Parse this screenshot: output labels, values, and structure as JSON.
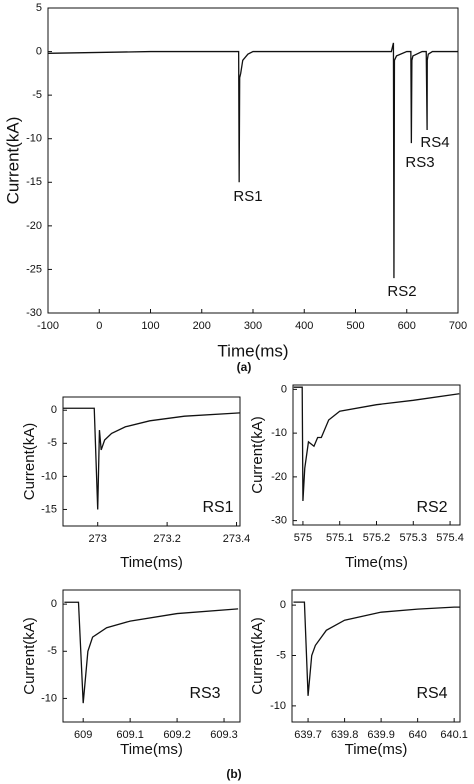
{
  "panel_labels": [
    "(a)",
    "(b)"
  ],
  "chart_data": [
    {
      "type": "line",
      "xlabel": "Time(ms)",
      "ylabel": "Current(kA)",
      "xlim": [
        -100,
        700
      ],
      "xticks": [
        -100,
        0,
        100,
        200,
        300,
        400,
        500,
        600,
        700
      ],
      "ylim": [
        -30,
        5
      ],
      "yticks": [
        5,
        0,
        -5,
        -10,
        -15,
        -20,
        -25,
        -30
      ],
      "color": "#111111",
      "x": [
        -100,
        0,
        100,
        200,
        270,
        272,
        273,
        274,
        276,
        280,
        290,
        300,
        400,
        500,
        570,
        574,
        575,
        576,
        580,
        600,
        608,
        609,
        610,
        612,
        630,
        638,
        639.7,
        640,
        642,
        650,
        700
      ],
      "values": [
        -0.2,
        -0.1,
        0,
        0,
        0,
        0,
        -15,
        -3,
        -2.5,
        -1,
        -0.3,
        0,
        0,
        0,
        0,
        1,
        -26,
        -1,
        -0.5,
        0,
        0,
        -10.5,
        -1,
        -0.5,
        0,
        0,
        -9,
        -1,
        -0.3,
        0,
        0
      ],
      "annotations": [
        "RS1",
        "RS2",
        "RS3",
        "RS4"
      ]
    },
    {
      "type": "line",
      "label": "RS1",
      "xlabel": "Time(ms)",
      "ylabel": "Current(kA)",
      "xlim": [
        272.9,
        273.41
      ],
      "xticks": [
        273,
        273.2,
        273.4
      ],
      "ylim": [
        -17.5,
        2
      ],
      "yticks": [
        0,
        -5,
        -10,
        -15
      ],
      "color": "#111111",
      "x": [
        272.9,
        272.99,
        273.0,
        273.005,
        273.01,
        273.02,
        273.04,
        273.08,
        273.15,
        273.25,
        273.41
      ],
      "values": [
        0.3,
        0.3,
        -15,
        -3,
        -6,
        -4.5,
        -3.5,
        -2.5,
        -1.6,
        -0.9,
        -0.4
      ]
    },
    {
      "type": "line",
      "label": "RS2",
      "xlabel": "Time(ms)",
      "ylabel": "Current(kA)",
      "xlim": [
        574.973,
        575.427
      ],
      "xticks": [
        575,
        575.1,
        575.2,
        575.3,
        575.4
      ],
      "ylim": [
        -31,
        1
      ],
      "yticks": [
        0,
        -10,
        -20,
        -30
      ],
      "color": "#111111",
      "x": [
        574.975,
        574.998,
        575.0,
        575.005,
        575.015,
        575.03,
        575.04,
        575.05,
        575.07,
        575.1,
        575.2,
        575.3,
        575.425
      ],
      "values": [
        0.5,
        0.5,
        -25.5,
        -18,
        -12,
        -13,
        -11,
        -11,
        -7,
        -5,
        -3.5,
        -2.5,
        -1
      ]
    },
    {
      "type": "line",
      "label": "RS3",
      "xlabel": "Time(ms)",
      "ylabel": "Current(kA)",
      "xlim": [
        608.957,
        609.334
      ],
      "xticks": [
        609,
        609.1,
        609.2,
        609.3
      ],
      "ylim": [
        -12.5,
        1.5
      ],
      "yticks": [
        0,
        -5,
        -10
      ],
      "color": "#111111",
      "x": [
        608.96,
        608.99,
        609.0,
        609.01,
        609.02,
        609.05,
        609.1,
        609.2,
        609.33
      ],
      "values": [
        0.2,
        0.2,
        -10.5,
        -5,
        -3.5,
        -2.5,
        -1.8,
        -1,
        -0.5
      ]
    },
    {
      "type": "line",
      "label": "RS4",
      "xlabel": "Time(ms)",
      "ylabel": "Current(kA)",
      "xlim": [
        639.656,
        640.116
      ],
      "xticks": [
        639.7,
        639.8,
        639.9,
        640,
        640.1
      ],
      "ylim": [
        -11.6,
        1.5
      ],
      "yticks": [
        0,
        -5,
        -10
      ],
      "color": "#111111",
      "x": [
        639.66,
        639.69,
        639.7,
        639.71,
        639.72,
        639.75,
        639.8,
        639.9,
        640.0,
        640.1,
        640.116
      ],
      "values": [
        0.3,
        0.3,
        -9,
        -5,
        -4,
        -2.5,
        -1.5,
        -0.7,
        -0.4,
        -0.2,
        -0.2
      ]
    }
  ]
}
